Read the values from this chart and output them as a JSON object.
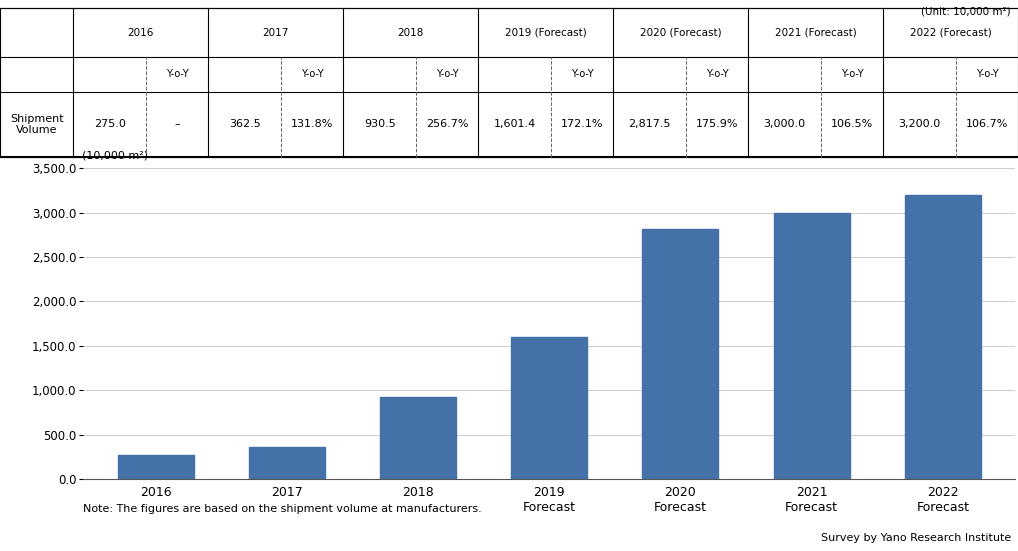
{
  "unit_label": "(Unit: 10,000 m²)",
  "chart_unit_label": "(10,000 m²)",
  "years": [
    "2016",
    "2017",
    "2018",
    "2019\nForecast",
    "2020\nForecast",
    "2021\nForecast",
    "2022\nForecast"
  ],
  "table_years": [
    "2016",
    "2017",
    "2018",
    "2019 (Forecast)",
    "2020 (Forecast)",
    "2021 (Forecast)",
    "2022 (Forecast)"
  ],
  "values": [
    275.0,
    362.5,
    930.5,
    1601.4,
    2817.5,
    3000.0,
    3200.0
  ],
  "bar_color": "#4472a8",
  "background_color": "#ffffff",
  "ylim": [
    0,
    3500
  ],
  "yticks": [
    0,
    500,
    1000,
    1500,
    2000,
    2500,
    3000,
    3500
  ],
  "ytick_labels": [
    "0.0",
    "500.0",
    "1,000.0",
    "1,500.0",
    "2,000.0",
    "2,500.0",
    "3,000.0",
    "3,500.0"
  ],
  "note": "Note: The figures are based on the shipment volume at manufacturers.",
  "source": "Survey by Yano Research Institute",
  "row_label": "Shipment\nVolume",
  "table_values": [
    "275.0",
    "362.5",
    "930.5",
    "1,601.4",
    "2,817.5",
    "3,000.0",
    "3,200.0"
  ],
  "table_yoy": [
    "–",
    "131.8%",
    "256.7%",
    "172.1%",
    "175.9%",
    "106.5%",
    "106.7%"
  ]
}
